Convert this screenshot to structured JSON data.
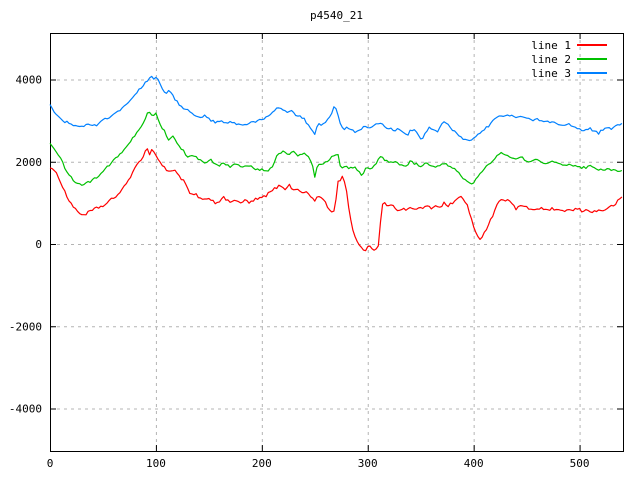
{
  "title": "p4540_21",
  "colors": {
    "series": [
      "#ff0000",
      "#00c000",
      "#0080ff"
    ],
    "grid": "#b4b4b4",
    "axis": "#000000",
    "background": "#ffffff",
    "text": "#000000"
  },
  "legend": {
    "position": "top-right",
    "items": [
      {
        "label": "line 1",
        "color": "#ff0000"
      },
      {
        "label": "line 2",
        "color": "#00c000"
      },
      {
        "label": "line 3",
        "color": "#0080ff"
      }
    ]
  },
  "chart_data": {
    "type": "line",
    "title": "p4540_21",
    "xlabel": "",
    "ylabel": "",
    "xlim": [
      0,
      541
    ],
    "ylim": [
      -5050,
      5150
    ],
    "x_ticks": [
      0,
      100,
      200,
      300,
      400,
      500
    ],
    "y_ticks": [
      -4000,
      -2000,
      0,
      2000,
      4000
    ],
    "grid": true,
    "legend_position": "top-right",
    "series": [
      {
        "name": "line 1",
        "color": "#ff0000",
        "x": [
          0,
          8,
          16,
          24,
          31,
          38,
          45,
          52,
          58,
          64,
          70,
          76,
          82,
          88,
          91,
          94,
          97,
          101,
          105,
          110,
          114,
          118,
          122,
          127,
          133,
          138,
          142,
          147,
          151,
          156,
          160,
          164,
          169,
          174,
          179,
          184,
          189,
          194,
          200,
          205,
          210,
          214,
          218,
          222,
          226,
          230,
          234,
          238,
          242,
          246,
          250,
          254,
          258,
          262,
          266,
          269,
          272,
          276,
          279,
          282,
          285,
          288,
          292,
          295,
          297,
          300,
          303,
          307,
          310,
          312,
          314,
          316,
          320,
          324,
          328,
          332,
          336,
          340,
          344,
          348,
          352,
          356,
          360,
          364,
          368,
          372,
          376,
          380,
          384,
          388,
          391,
          394,
          397,
          400,
          403,
          406,
          409,
          412,
          415,
          418,
          421,
          424,
          428,
          432,
          436,
          440,
          444,
          448,
          453,
          458,
          463,
          468,
          473,
          478,
          483,
          488,
          493,
          498,
          503,
          508,
          513,
          518,
          523,
          528,
          533,
          537,
          541
        ],
        "y": [
          1880,
          1640,
          1150,
          830,
          700,
          790,
          880,
          950,
          1080,
          1200,
          1380,
          1650,
          1900,
          2150,
          2340,
          2200,
          2320,
          2100,
          1950,
          1800,
          1750,
          1820,
          1650,
          1500,
          1180,
          1200,
          1100,
          1050,
          1120,
          1000,
          1050,
          1120,
          1020,
          1080,
          980,
          1060,
          1000,
          1080,
          1120,
          1200,
          1300,
          1380,
          1420,
          1350,
          1430,
          1300,
          1360,
          1220,
          1280,
          1150,
          1070,
          1160,
          1080,
          900,
          780,
          850,
          1520,
          1620,
          1500,
          900,
          400,
          150,
          0,
          -100,
          -220,
          -30,
          -80,
          -150,
          -60,
          530,
          950,
          1020,
          900,
          960,
          820,
          870,
          820,
          880,
          830,
          900,
          850,
          920,
          870,
          950,
          900,
          990,
          920,
          1010,
          1080,
          1150,
          1060,
          950,
          700,
          400,
          180,
          100,
          250,
          380,
          520,
          700,
          900,
          1070,
          1040,
          1110,
          1000,
          830,
          950,
          890,
          860,
          830,
          880,
          810,
          860,
          820,
          780,
          840,
          800,
          860,
          790,
          830,
          780,
          810,
          830,
          880,
          960,
          1060,
          1150
        ]
      },
      {
        "name": "line 2",
        "color": "#00c000",
        "x": [
          0,
          8,
          16,
          24,
          30,
          37,
          44,
          51,
          58,
          64,
          70,
          76,
          82,
          88,
          93,
          97,
          100,
          104,
          108,
          112,
          116,
          120,
          125,
          130,
          136,
          142,
          147,
          152,
          158,
          164,
          170,
          176,
          182,
          188,
          194,
          200,
          205,
          210,
          215,
          220,
          225,
          230,
          235,
          240,
          245,
          248,
          250,
          253,
          257,
          261,
          265,
          269,
          272,
          275,
          279,
          283,
          287,
          291,
          295,
          299,
          303,
          307,
          310,
          313,
          316,
          320,
          325,
          330,
          335,
          340,
          345,
          350,
          355,
          360,
          365,
          370,
          375,
          380,
          385,
          390,
          394,
          398,
          402,
          406,
          410,
          415,
          420,
          424,
          427,
          431,
          436,
          440,
          445,
          450,
          455,
          460,
          465,
          470,
          475,
          480,
          485,
          490,
          495,
          500,
          505,
          510,
          515,
          520,
          525,
          530,
          535,
          541
        ],
        "y": [
          2420,
          2180,
          1750,
          1500,
          1440,
          1500,
          1620,
          1800,
          1980,
          2120,
          2300,
          2500,
          2700,
          2950,
          3220,
          3080,
          3160,
          2900,
          2750,
          2550,
          2620,
          2450,
          2300,
          2100,
          2150,
          2050,
          1960,
          2030,
          1900,
          1960,
          1880,
          1950,
          1850,
          1920,
          1830,
          1800,
          1760,
          1900,
          2180,
          2250,
          2180,
          2240,
          2140,
          2200,
          2080,
          1900,
          1640,
          1950,
          1900,
          2000,
          2100,
          2190,
          2150,
          1810,
          1900,
          1840,
          1880,
          1790,
          1650,
          1880,
          1840,
          1900,
          2080,
          2120,
          2060,
          1980,
          2010,
          1950,
          1890,
          2000,
          1950,
          1900,
          1950,
          1890,
          1850,
          1950,
          1930,
          1850,
          1790,
          1610,
          1520,
          1450,
          1560,
          1700,
          1850,
          1950,
          2100,
          2180,
          2220,
          2150,
          2090,
          2050,
          2100,
          2040,
          2000,
          2050,
          1990,
          1970,
          2000,
          1950,
          1900,
          1950,
          1890,
          1880,
          1850,
          1900,
          1840,
          1800,
          1820,
          1790,
          1780,
          1760
        ]
      },
      {
        "name": "line 3",
        "color": "#0080ff",
        "x": [
          0,
          4,
          9,
          14,
          19,
          24,
          28,
          33,
          38,
          43,
          48,
          53,
          58,
          63,
          68,
          73,
          78,
          83,
          88,
          92,
          95,
          98,
          101,
          105,
          109,
          113,
          117,
          121,
          126,
          131,
          136,
          141,
          146,
          151,
          156,
          161,
          166,
          171,
          176,
          181,
          186,
          191,
          196,
          201,
          206,
          211,
          215,
          219,
          223,
          227,
          231,
          235,
          239,
          243,
          247,
          250,
          253,
          257,
          261,
          265,
          268,
          271,
          274,
          277,
          281,
          285,
          289,
          293,
          297,
          301,
          305,
          309,
          313,
          317,
          321,
          325,
          329,
          333,
          337,
          340,
          344,
          348,
          351,
          355,
          358,
          362,
          366,
          370,
          373,
          377,
          381,
          385,
          389,
          393,
          397,
          401,
          405,
          410,
          415,
          420,
          425,
          430,
          435,
          440,
          445,
          450,
          455,
          460,
          465,
          470,
          475,
          480,
          485,
          490,
          495,
          500,
          505,
          510,
          515,
          518,
          522,
          526,
          530,
          535,
          541
        ],
        "y": [
          3400,
          3180,
          3060,
          2980,
          2920,
          2870,
          2830,
          2880,
          2920,
          2870,
          2960,
          3050,
          3120,
          3200,
          3300,
          3420,
          3560,
          3720,
          3870,
          3980,
          4100,
          4000,
          4060,
          3820,
          3680,
          3720,
          3560,
          3420,
          3300,
          3260,
          3160,
          3080,
          3120,
          3010,
          2960,
          3010,
          2920,
          2960,
          2900,
          2870,
          2920,
          2950,
          3000,
          3050,
          3120,
          3250,
          3320,
          3260,
          3200,
          3260,
          3160,
          3120,
          3060,
          2940,
          2750,
          2650,
          2950,
          2900,
          2980,
          3100,
          3320,
          3250,
          2950,
          2780,
          2830,
          2760,
          2710,
          2800,
          2850,
          2800,
          2880,
          2930,
          2900,
          2850,
          2800,
          2760,
          2800,
          2740,
          2620,
          2740,
          2800,
          2650,
          2550,
          2700,
          2830,
          2790,
          2750,
          2900,
          2980,
          2850,
          2760,
          2660,
          2570,
          2500,
          2540,
          2600,
          2680,
          2780,
          2900,
          3040,
          3150,
          3090,
          3150,
          3080,
          3110,
          3050,
          3000,
          3050,
          2960,
          3000,
          2950,
          2900,
          2860,
          2900,
          2850,
          2800,
          2760,
          2800,
          2740,
          2700,
          2790,
          2850,
          2800,
          2860,
          2950
        ]
      }
    ]
  }
}
